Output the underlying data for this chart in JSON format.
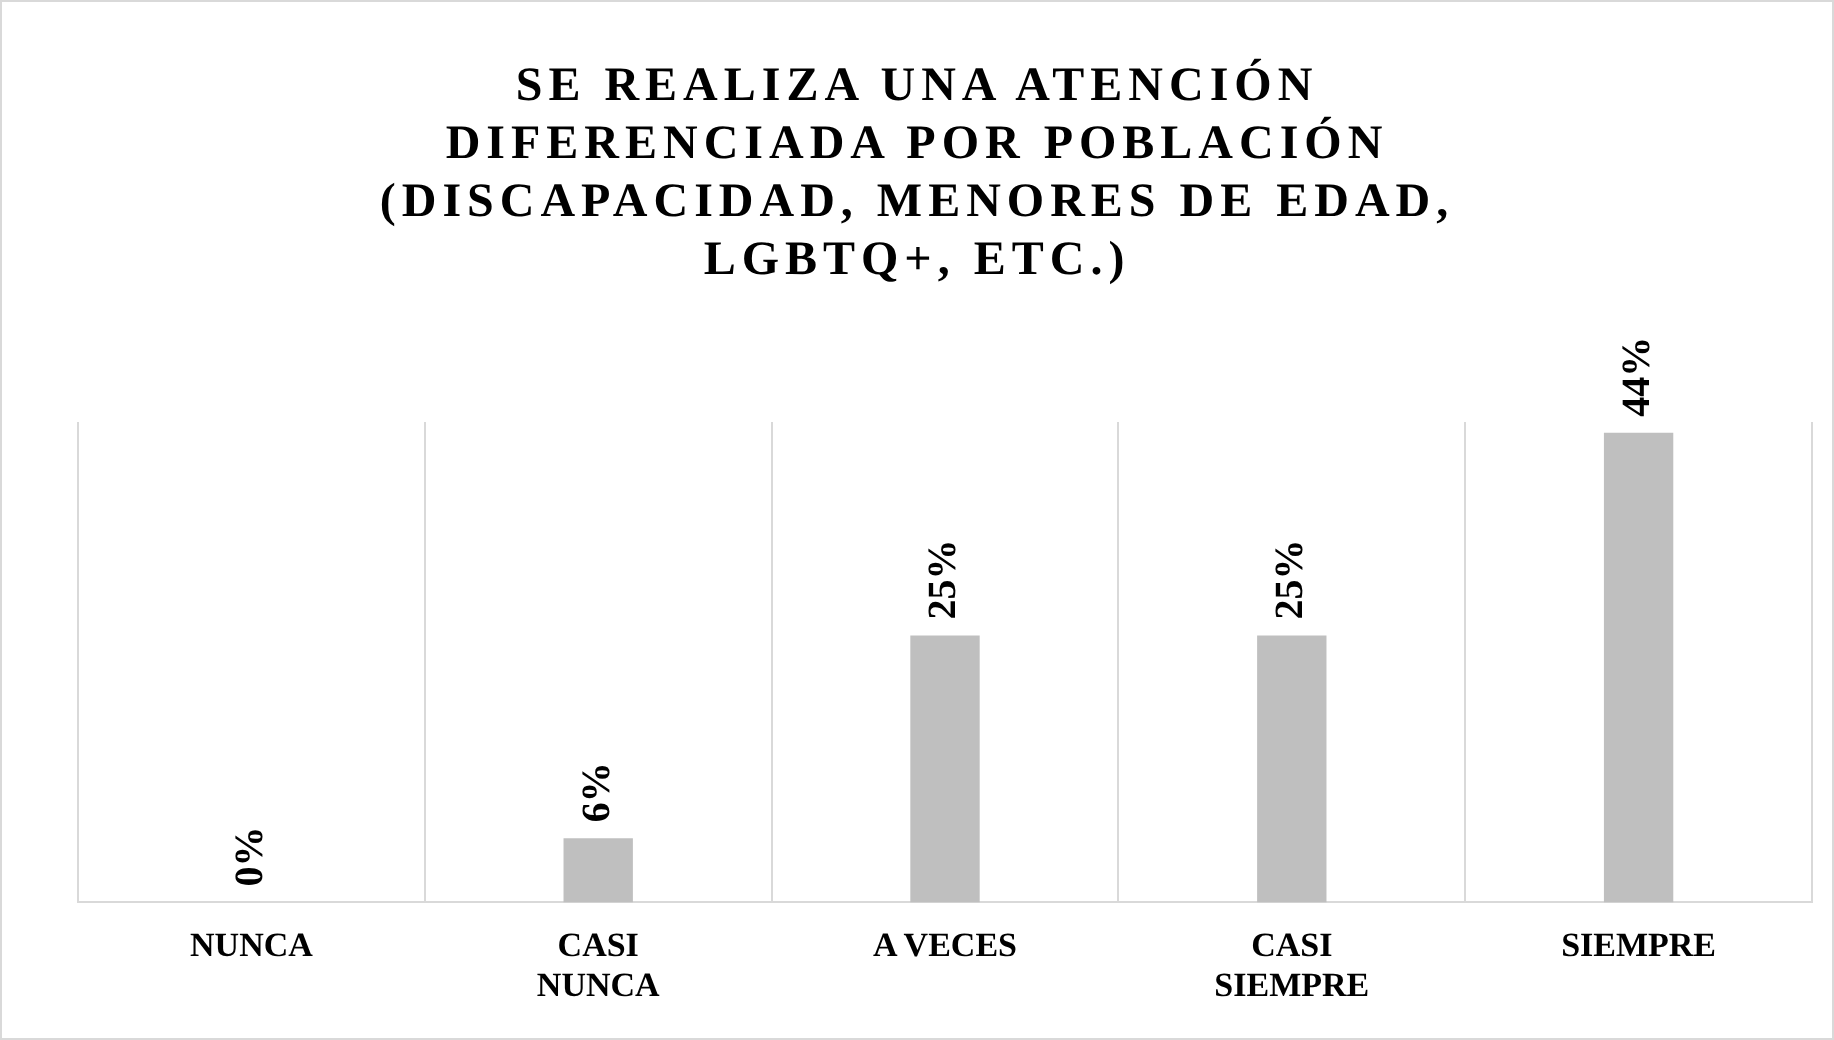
{
  "chart_data": {
    "type": "bar",
    "title": "SE REALIZA UNA ATENCIÓN DIFERENCIADA POR POBLACIÓN (DISCAPACIDAD, MENORES DE EDAD, LGBTQ+, ETC.)",
    "categories": [
      "NUNCA",
      "CASI NUNCA",
      "A VECES",
      "CASI SIEMPRE",
      "SIEMPRE"
    ],
    "values": [
      0,
      6,
      25,
      25,
      44
    ],
    "value_labels": [
      "0%",
      "6%",
      "25%",
      "25%",
      "44%"
    ],
    "color": "#bfbfbf",
    "grid": "x",
    "legend": false,
    "tick_labels": "x"
  }
}
